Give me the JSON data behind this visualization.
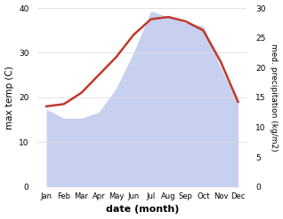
{
  "months": [
    "Jan",
    "Feb",
    "Mar",
    "Apr",
    "May",
    "Jun",
    "Jul",
    "Aug",
    "Sep",
    "Oct",
    "Nov",
    "Dec"
  ],
  "temp": [
    18.0,
    18.5,
    21.0,
    25.0,
    29.0,
    34.0,
    37.5,
    38.0,
    37.0,
    35.0,
    28.0,
    19.0
  ],
  "precip": [
    13.0,
    11.5,
    11.5,
    12.5,
    16.5,
    22.5,
    29.5,
    28.5,
    27.5,
    27.0,
    20.0,
    14.0
  ],
  "temp_color": "#c0392b",
  "precip_fill_color": "#c8d0f0",
  "temp_ylim": [
    0,
    40
  ],
  "precip_ylim": [
    0,
    30
  ],
  "xlabel": "date (month)",
  "ylabel_left": "max temp (C)",
  "ylabel_right": "med. precipitation (kg/m2)",
  "yticks_left": [
    0,
    10,
    20,
    30,
    40
  ],
  "yticks_right": [
    0,
    5,
    10,
    15,
    20,
    25,
    30
  ]
}
